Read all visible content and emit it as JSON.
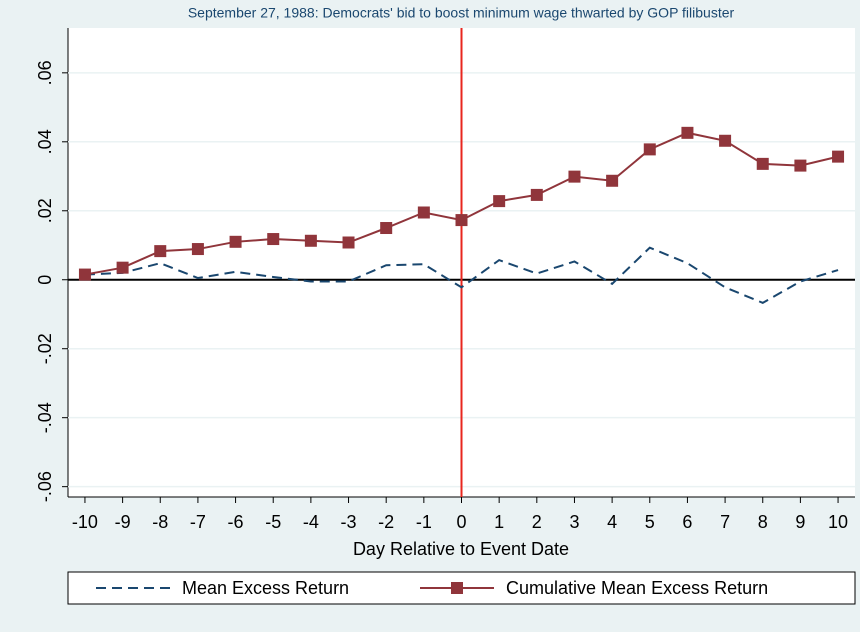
{
  "chart_data": {
    "type": "line",
    "title": "September 27, 1988: Democrats' bid to boost minimum wage thwarted by GOP filibuster",
    "x_label": "Day Relative to Event Date",
    "x": [
      -10,
      -9,
      -8,
      -7,
      -6,
      -5,
      -4,
      -3,
      -2,
      -1,
      0,
      1,
      2,
      3,
      4,
      5,
      6,
      7,
      8,
      9,
      10
    ],
    "series": [
      {
        "name": "Mean Excess Return",
        "color": "#1a476f",
        "style": "dashed",
        "marker": false,
        "values": [
          0.0015,
          0.002,
          0.0048,
          0.0005,
          0.0023,
          0.0008,
          -0.0005,
          -0.0005,
          0.0042,
          0.0045,
          -0.0022,
          0.0057,
          0.0018,
          0.0053,
          -0.0012,
          0.0093,
          0.0048,
          -0.0022,
          -0.0067,
          -0.0005,
          0.0028
        ]
      },
      {
        "name": "Cumulative Mean Excess Return",
        "color": "#90353b",
        "style": "solid",
        "marker": true,
        "values": [
          0.0015,
          0.0035,
          0.0083,
          0.0089,
          0.011,
          0.0118,
          0.0113,
          0.0108,
          0.015,
          0.0195,
          0.0173,
          0.0228,
          0.0246,
          0.0299,
          0.0287,
          0.0378,
          0.0426,
          0.0403,
          0.0336,
          0.0331,
          0.0357
        ]
      }
    ],
    "xlim": [
      -10.45,
      10.45
    ],
    "xticks": [
      -10,
      -9,
      -8,
      -7,
      -6,
      -5,
      -4,
      -3,
      -2,
      -1,
      0,
      1,
      2,
      3,
      4,
      5,
      6,
      7,
      8,
      9,
      10
    ],
    "ylim": [
      -0.063,
      0.073
    ],
    "yticks": [
      {
        "value": -0.06,
        "label": "-.06"
      },
      {
        "value": -0.04,
        "label": "-.04"
      },
      {
        "value": -0.02,
        "label": "-.02"
      },
      0,
      {
        "value": 0.02,
        "label": ".02"
      },
      {
        "value": 0.04,
        "label": ".04"
      },
      {
        "value": 0.06,
        "label": ".06"
      }
    ],
    "grid": true,
    "xline": {
      "value": 0,
      "color": "#e8261e"
    },
    "yline": {
      "value": 0,
      "color": "#000000"
    },
    "legend": "bottom"
  }
}
